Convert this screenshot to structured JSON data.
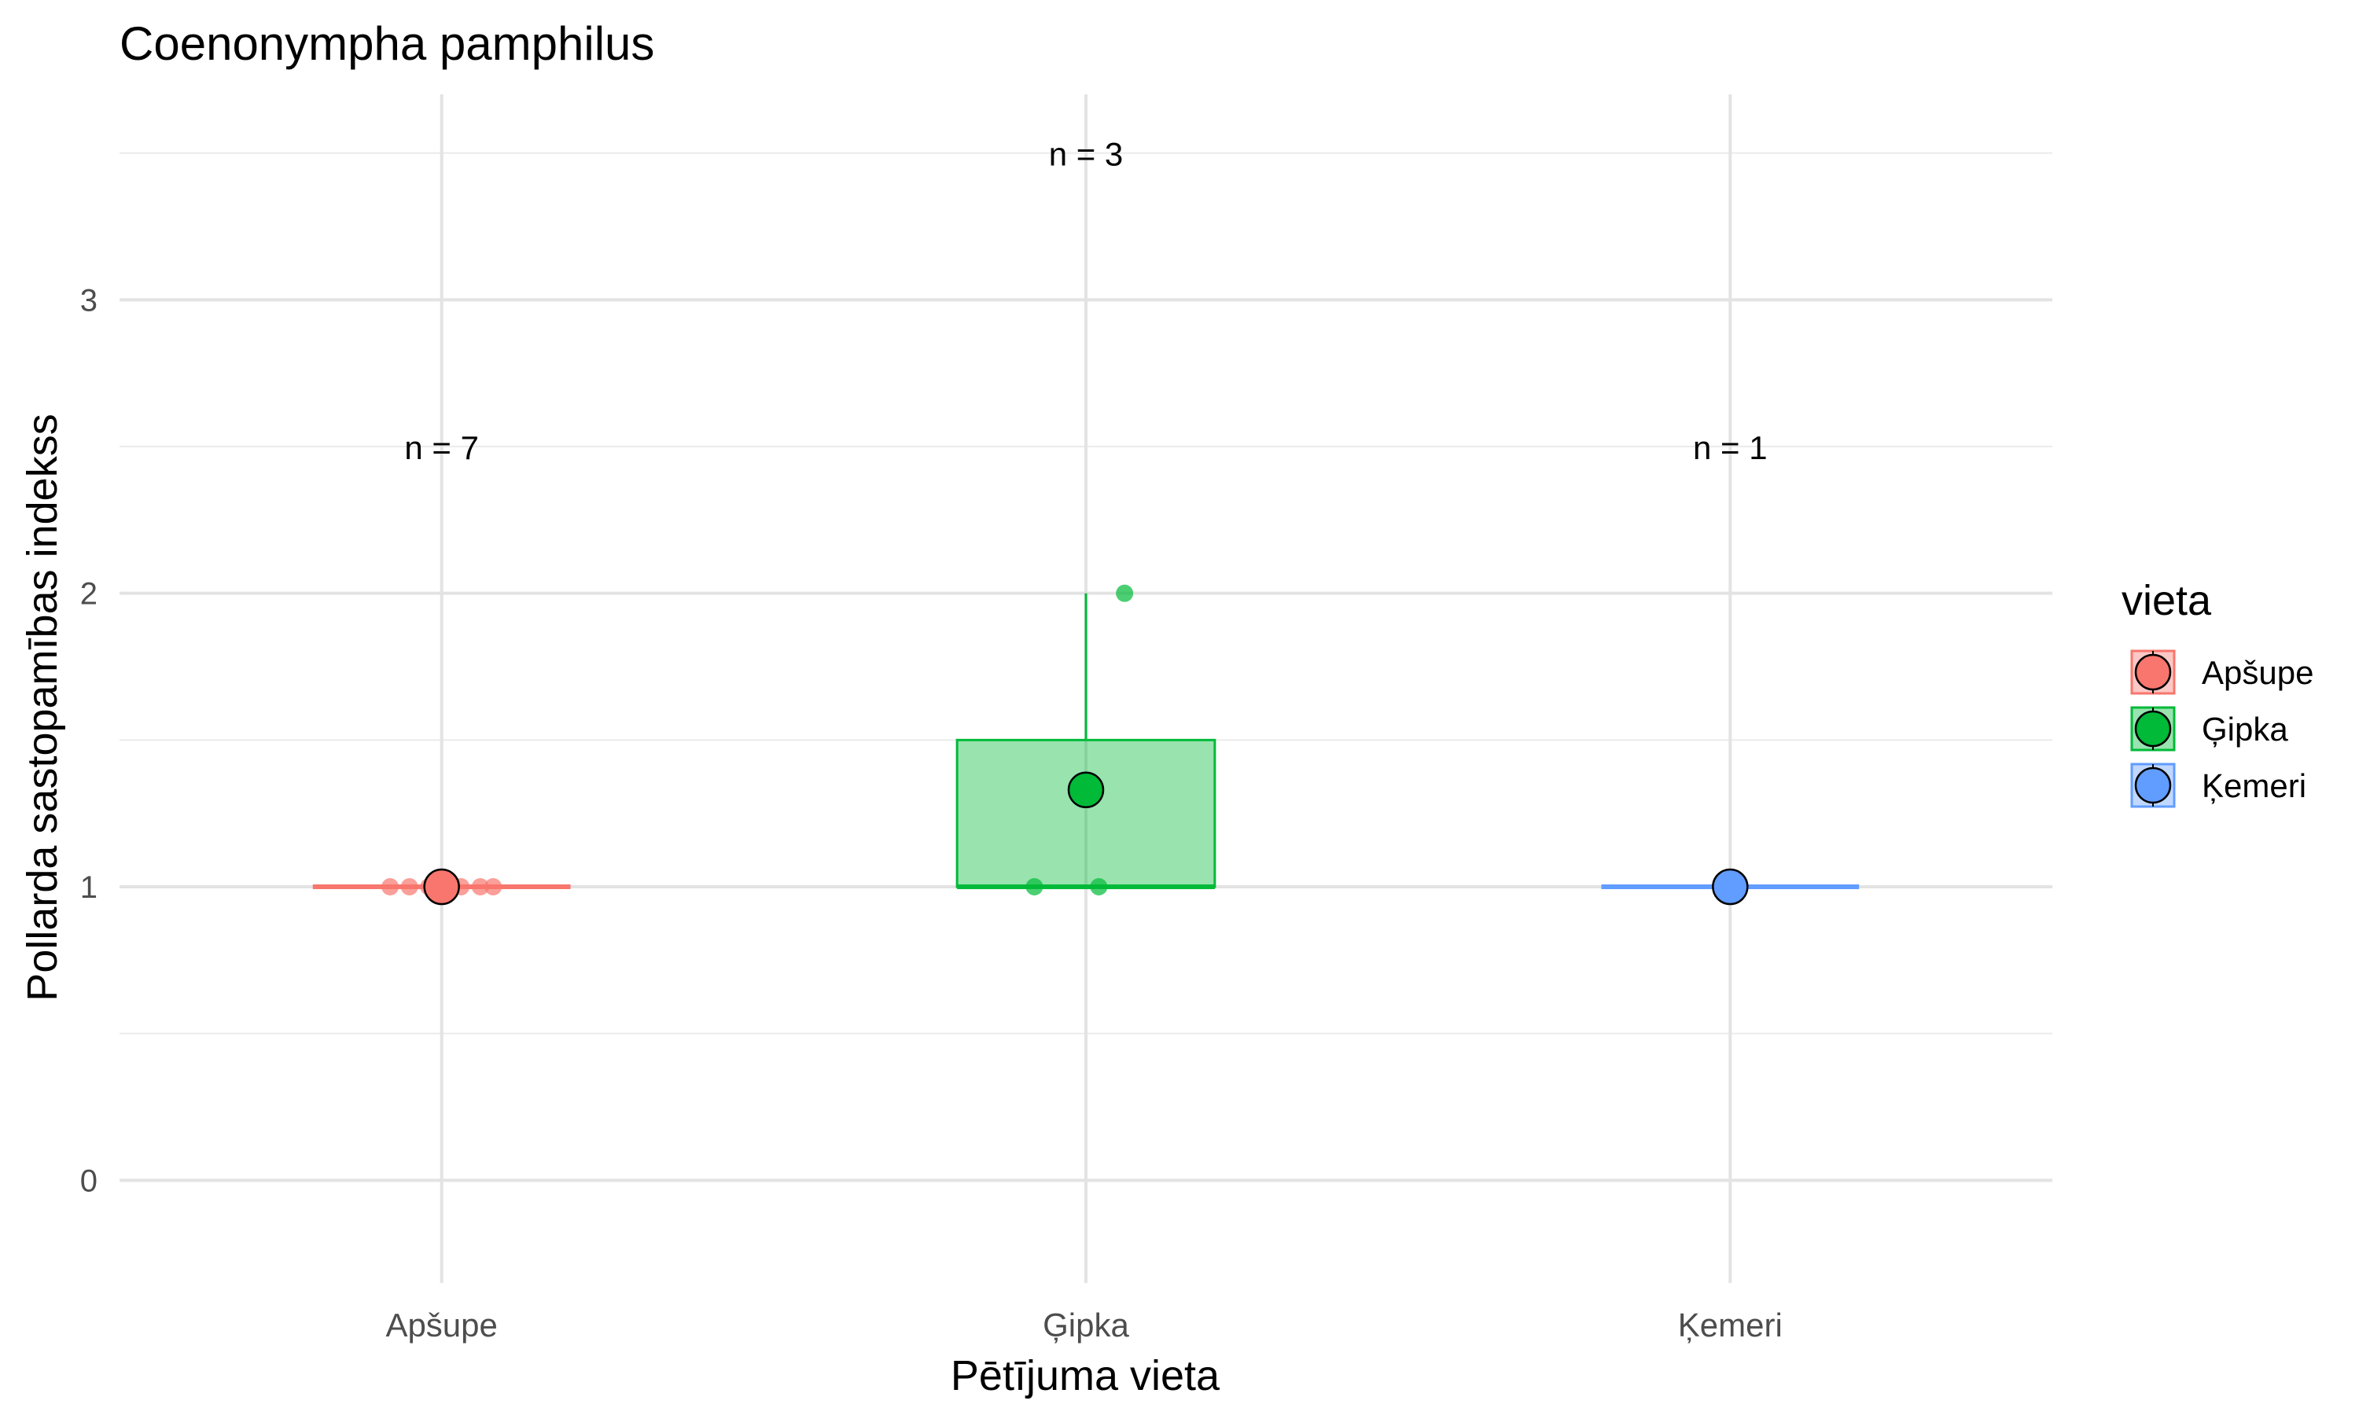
{
  "chart_data": {
    "type": "box",
    "title": "Coenonympha pamphilus",
    "xlabel": "Pētījuma vieta",
    "ylabel": "Pollarda sastopamības indekss",
    "ylim": [
      -0.35,
      3.7
    ],
    "yticks": [
      0,
      1,
      2,
      3
    ],
    "grid": true,
    "legend": {
      "title": "vieta",
      "position": "right"
    },
    "categories": [
      "Apšupe",
      "Ģipka",
      "Ķemeri"
    ],
    "series": [
      {
        "name": "Apšupe",
        "color": "#F8766D",
        "n_label": "n = 7",
        "n_label_y": 2.5,
        "box": {
          "min": 1,
          "q1": 1,
          "median": 1,
          "q3": 1,
          "max": 1
        },
        "mean": 1,
        "points": [
          {
            "x_jitter": -0.08,
            "y": 1
          },
          {
            "x_jitter": -0.05,
            "y": 1
          },
          {
            "x_jitter": -0.02,
            "y": 1
          },
          {
            "x_jitter": 0.0,
            "y": 1
          },
          {
            "x_jitter": 0.03,
            "y": 1
          },
          {
            "x_jitter": 0.06,
            "y": 1
          },
          {
            "x_jitter": 0.08,
            "y": 1
          }
        ]
      },
      {
        "name": "Ģipka",
        "color": "#00BA38",
        "n_label": "n = 3",
        "n_label_y": 3.5,
        "box": {
          "min": 1,
          "q1": 1,
          "median": 1,
          "q3": 1.5,
          "max": 2
        },
        "mean": 1.33,
        "points": [
          {
            "x_jitter": -0.08,
            "y": 1
          },
          {
            "x_jitter": 0.02,
            "y": 1
          },
          {
            "x_jitter": 0.06,
            "y": 2
          }
        ]
      },
      {
        "name": "Ķemeri",
        "color": "#619CFF",
        "n_label": "n = 1",
        "n_label_y": 2.5,
        "box": {
          "min": 1,
          "q1": 1,
          "median": 1,
          "q3": 1,
          "max": 1
        },
        "mean": 1,
        "points": [
          {
            "x_jitter": 0.0,
            "y": 1
          }
        ]
      }
    ]
  }
}
